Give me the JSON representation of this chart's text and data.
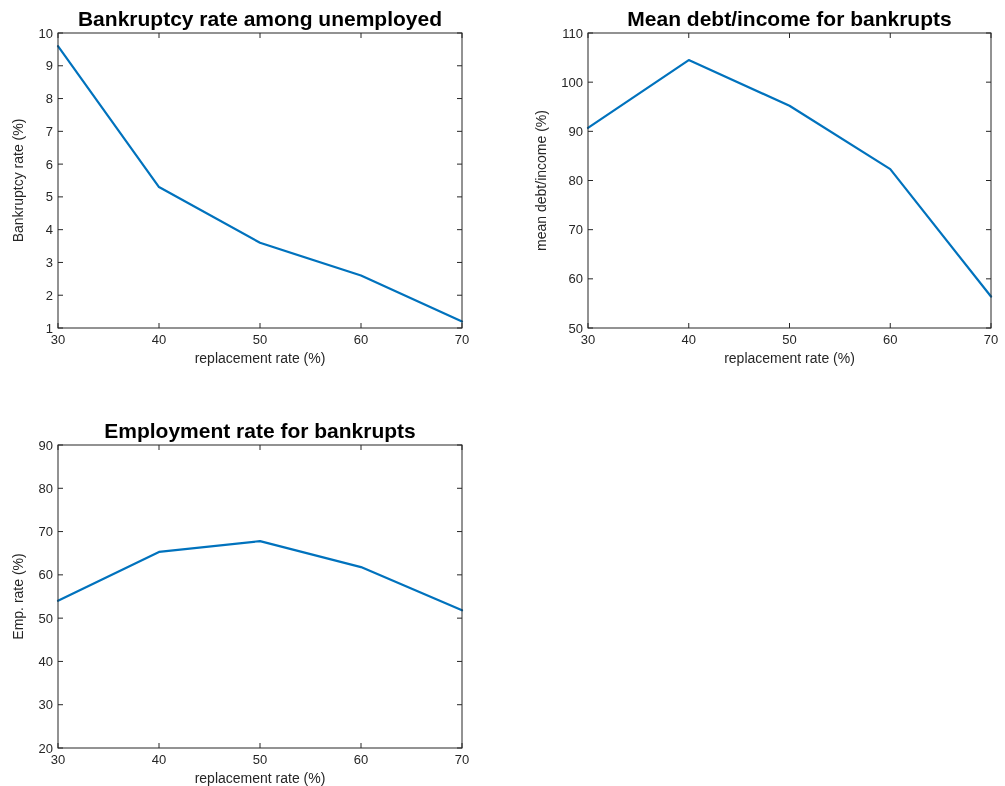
{
  "chart_data": [
    {
      "type": "line",
      "title": "Bankruptcy rate among unemployed",
      "xlabel": "replacement rate (%)",
      "ylabel": "Bankruptcy rate (%)",
      "x": [
        30,
        40,
        50,
        60,
        70
      ],
      "xlim": [
        30,
        70
      ],
      "xticks": [
        30,
        40,
        50,
        60,
        70
      ],
      "ylim": [
        1,
        10
      ],
      "yticks": [
        1,
        2,
        3,
        4,
        5,
        6,
        7,
        8,
        9,
        10
      ],
      "grid": false,
      "series": [
        {
          "color": "#0072bd",
          "values": [
            9.6,
            5.3,
            3.6,
            2.6,
            1.2
          ]
        }
      ]
    },
    {
      "type": "line",
      "title": "Mean debt/income for bankrupts",
      "xlabel": "replacement rate (%)",
      "ylabel": "mean debt/income (%)",
      "x": [
        30,
        40,
        50,
        60,
        70
      ],
      "xlim": [
        30,
        70
      ],
      "xticks": [
        30,
        40,
        50,
        60,
        70
      ],
      "ylim": [
        50,
        110
      ],
      "yticks": [
        50,
        60,
        70,
        80,
        90,
        100,
        110
      ],
      "grid": false,
      "series": [
        {
          "color": "#0072bd",
          "values": [
            90.7,
            104.5,
            95.2,
            82.3,
            56.4
          ]
        }
      ]
    },
    {
      "type": "line",
      "title": "Employment rate for bankrupts",
      "xlabel": "replacement rate (%)",
      "ylabel": "Emp. rate (%)",
      "x": [
        30,
        40,
        50,
        60,
        70
      ],
      "xlim": [
        30,
        70
      ],
      "xticks": [
        30,
        40,
        50,
        60,
        70
      ],
      "ylim": [
        20,
        90
      ],
      "yticks": [
        20,
        30,
        40,
        50,
        60,
        70,
        80,
        90
      ],
      "grid": false,
      "series": [
        {
          "color": "#0072bd",
          "values": [
            54,
            65.3,
            67.8,
            61.8,
            51.8
          ]
        }
      ]
    }
  ]
}
